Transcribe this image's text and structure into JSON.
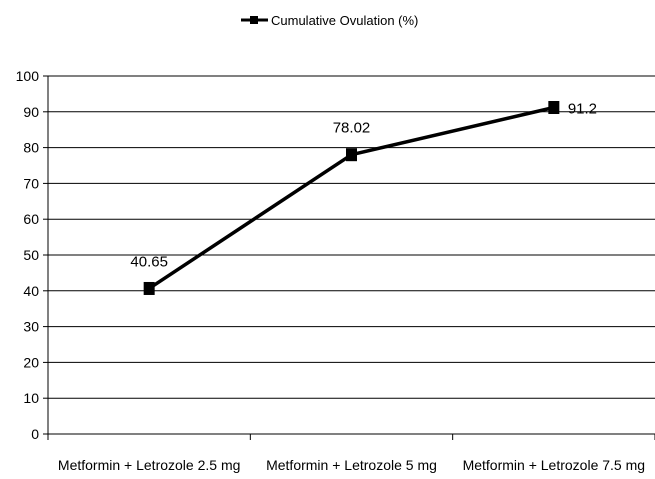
{
  "chart_data": {
    "type": "line",
    "categories": [
      "Metformin + Letrozole 2.5 mg",
      "Metformin + Letrozole 5 mg",
      "Metformin + Letrozole 7.5 mg"
    ],
    "series": [
      {
        "name": "Cumulative Ovulation (%)",
        "values": [
          40.65,
          78.02,
          91.2
        ],
        "data_labels": [
          "40.65",
          "78.02",
          "91.2"
        ],
        "color": "#000000",
        "marker": "square"
      }
    ],
    "ylim": [
      0,
      100
    ],
    "y_ticks": [
      0,
      10,
      20,
      30,
      40,
      50,
      60,
      70,
      80,
      90,
      100
    ],
    "grid": "horizontal",
    "legend_position": "top"
  }
}
